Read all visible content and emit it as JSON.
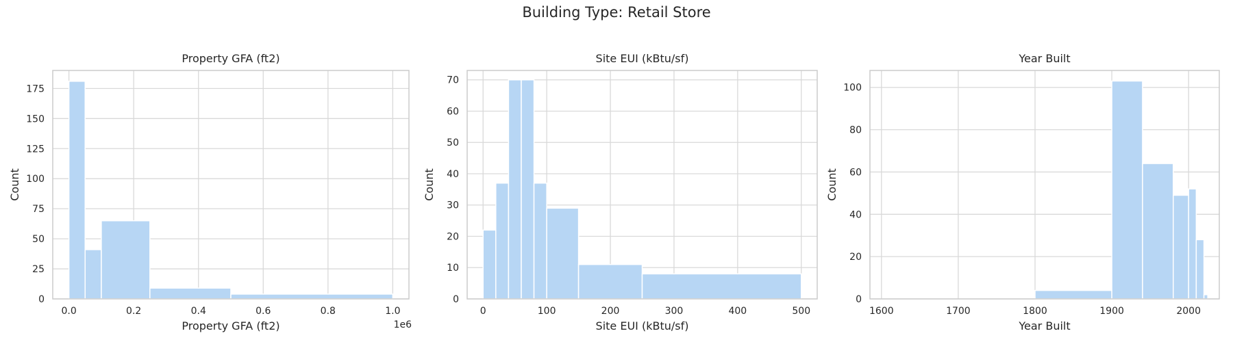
{
  "suptitle": "Building Type: Retail Store",
  "colors": {
    "bar": "#b7d6f4",
    "grid": "#d9d9d9",
    "spine": "#cccccc"
  },
  "chart_data": [
    {
      "type": "bar",
      "title": "Property GFA (ft2)",
      "xlabel": "Property GFA (ft2)",
      "ylabel": "Count",
      "offset_text": "1e6",
      "xlim": [
        -0.05,
        1.05
      ],
      "ylim": [
        0,
        190
      ],
      "xticks": [
        0.0,
        0.2,
        0.4,
        0.6,
        0.8,
        1.0
      ],
      "xtick_labels": [
        "0.0",
        "0.2",
        "0.4",
        "0.6",
        "0.8",
        "1.0"
      ],
      "yticks": [
        0,
        25,
        50,
        75,
        100,
        125,
        150,
        175
      ],
      "grid": true,
      "bins": [
        {
          "x0": 0.0,
          "x1": 0.05,
          "value": 181
        },
        {
          "x0": 0.05,
          "x1": 0.1,
          "value": 41
        },
        {
          "x0": 0.1,
          "x1": 0.25,
          "value": 65
        },
        {
          "x0": 0.25,
          "x1": 0.5,
          "value": 9
        },
        {
          "x0": 0.5,
          "x1": 1.0,
          "value": 4
        }
      ]
    },
    {
      "type": "bar",
      "title": "Site EUI (kBtu/sf)",
      "xlabel": "Site EUI (kBtu/sf)",
      "ylabel": "Count",
      "xlim": [
        -25,
        525
      ],
      "ylim": [
        0,
        73
      ],
      "xticks": [
        0,
        100,
        200,
        300,
        400,
        500
      ],
      "xtick_labels": [
        "0",
        "100",
        "200",
        "300",
        "400",
        "500"
      ],
      "yticks": [
        0,
        10,
        20,
        30,
        40,
        50,
        60,
        70
      ],
      "grid": true,
      "bins": [
        {
          "x0": 0,
          "x1": 20,
          "value": 22
        },
        {
          "x0": 20,
          "x1": 40,
          "value": 37
        },
        {
          "x0": 40,
          "x1": 60,
          "value": 70
        },
        {
          "x0": 60,
          "x1": 80,
          "value": 70
        },
        {
          "x0": 80,
          "x1": 100,
          "value": 37
        },
        {
          "x0": 100,
          "x1": 150,
          "value": 29
        },
        {
          "x0": 150,
          "x1": 250,
          "value": 11
        },
        {
          "x0": 250,
          "x1": 500,
          "value": 8
        }
      ]
    },
    {
      "type": "bar",
      "title": "Year Built",
      "xlabel": "Year Built",
      "ylabel": "Count",
      "xlim": [
        1585,
        2040
      ],
      "ylim": [
        0,
        108
      ],
      "xticks": [
        1600,
        1700,
        1800,
        1900,
        2000
      ],
      "xtick_labels": [
        "1600",
        "1700",
        "1800",
        "1900",
        "2000"
      ],
      "yticks": [
        0,
        20,
        40,
        60,
        80,
        100
      ],
      "grid": true,
      "bins": [
        {
          "x0": 1600,
          "x1": 1800,
          "value": 0
        },
        {
          "x0": 1800,
          "x1": 1900,
          "value": 4
        },
        {
          "x0": 1900,
          "x1": 1940,
          "value": 103
        },
        {
          "x0": 1940,
          "x1": 1980,
          "value": 64
        },
        {
          "x0": 1980,
          "x1": 2000,
          "value": 49
        },
        {
          "x0": 2000,
          "x1": 2010,
          "value": 52
        },
        {
          "x0": 2010,
          "x1": 2020,
          "value": 28
        },
        {
          "x0": 2020,
          "x1": 2025,
          "value": 2
        }
      ]
    }
  ]
}
